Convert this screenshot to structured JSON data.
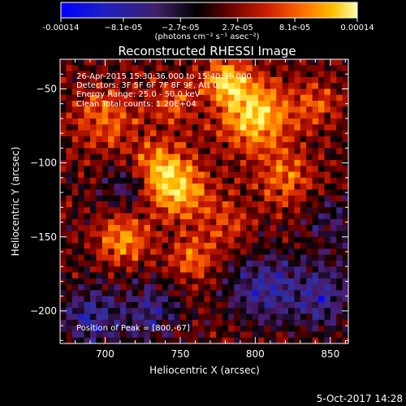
{
  "colorbar": {
    "tick_labels": [
      "-0.00014",
      "−8.1e-05",
      "−2.7e-05",
      "2.7e-05",
      "8.1e-05",
      "0.00014"
    ],
    "tick_values": [
      -0.00014,
      -8.1e-05,
      -2.7e-05,
      2.7e-05,
      8.1e-05,
      0.00014
    ],
    "range": [
      -0.00014,
      0.00014
    ],
    "unit_label": "(photons cm⁻² s⁻¹ asec⁻²)"
  },
  "annotations": {
    "time_range": "26-Apr-2015 15:30:36.000 to 15:40:36.000",
    "detectors": "Detectors: 3F 5F 6F 7F 8F 9F, Att 0",
    "energy": "Energy Range: 25.0 - 50.0 keV",
    "clean": "Clean     Total counts: 1.20E+04",
    "peak": "Position of Peak = [800,-67]"
  },
  "footer": {
    "date": "5-Oct-2017 14:28"
  },
  "chart_data": {
    "type": "heatmap",
    "title": "Reconstructed RHESSI Image",
    "xlabel": "Heliocentric X (arcsec)",
    "ylabel": "Heliocentric Y (arcsec)",
    "xlim": [
      670,
      862
    ],
    "ylim": [
      -222,
      -30
    ],
    "x_ticks": [
      700,
      750,
      800,
      850
    ],
    "x_tick_labels": [
      "700",
      "750",
      "800",
      "850"
    ],
    "y_ticks": [
      -50,
      -100,
      -150,
      -200
    ],
    "y_tick_labels": [
      "−50",
      "−100",
      "−150",
      "−200"
    ],
    "colormap": [
      "#0000ff",
      "#3030a0",
      "#4a1a6a",
      "#000000",
      "#7a0000",
      "#d02000",
      "#ff7000",
      "#ffc000",
      "#ffff90"
    ],
    "peak": [
      800,
      -67
    ],
    "sources": [
      {
        "x": 800,
        "y": -67,
        "amp": 1.0,
        "sigma": 16
      },
      {
        "x": 780,
        "y": -45,
        "amp": 0.8,
        "sigma": 10
      },
      {
        "x": 748,
        "y": -118,
        "amp": 0.85,
        "sigma": 14
      },
      {
        "x": 735,
        "y": -100,
        "amp": 0.55,
        "sigma": 12
      },
      {
        "x": 712,
        "y": -152,
        "amp": 0.7,
        "sigma": 11
      },
      {
        "x": 700,
        "y": -70,
        "amp": 0.55,
        "sigma": 14
      },
      {
        "x": 758,
        "y": -165,
        "amp": 0.55,
        "sigma": 10
      },
      {
        "x": 820,
        "y": -110,
        "amp": 0.5,
        "sigma": 13
      },
      {
        "x": 840,
        "y": -60,
        "amp": 0.45,
        "sigma": 10
      },
      {
        "x": 780,
        "y": -140,
        "amp": 0.4,
        "sigma": 12
      },
      {
        "x": 745,
        "y": -60,
        "amp": 0.45,
        "sigma": 11
      },
      {
        "x": 730,
        "y": -200,
        "amp": -0.5,
        "sigma": 14
      },
      {
        "x": 805,
        "y": -185,
        "amp": -0.6,
        "sigma": 16
      },
      {
        "x": 845,
        "y": -190,
        "amp": -0.55,
        "sigma": 16
      },
      {
        "x": 690,
        "y": -205,
        "amp": -0.6,
        "sigma": 14
      },
      {
        "x": 715,
        "y": -115,
        "amp": -0.4,
        "sigma": 10
      },
      {
        "x": 852,
        "y": -140,
        "amp": -0.35,
        "sigma": 12
      }
    ]
  }
}
